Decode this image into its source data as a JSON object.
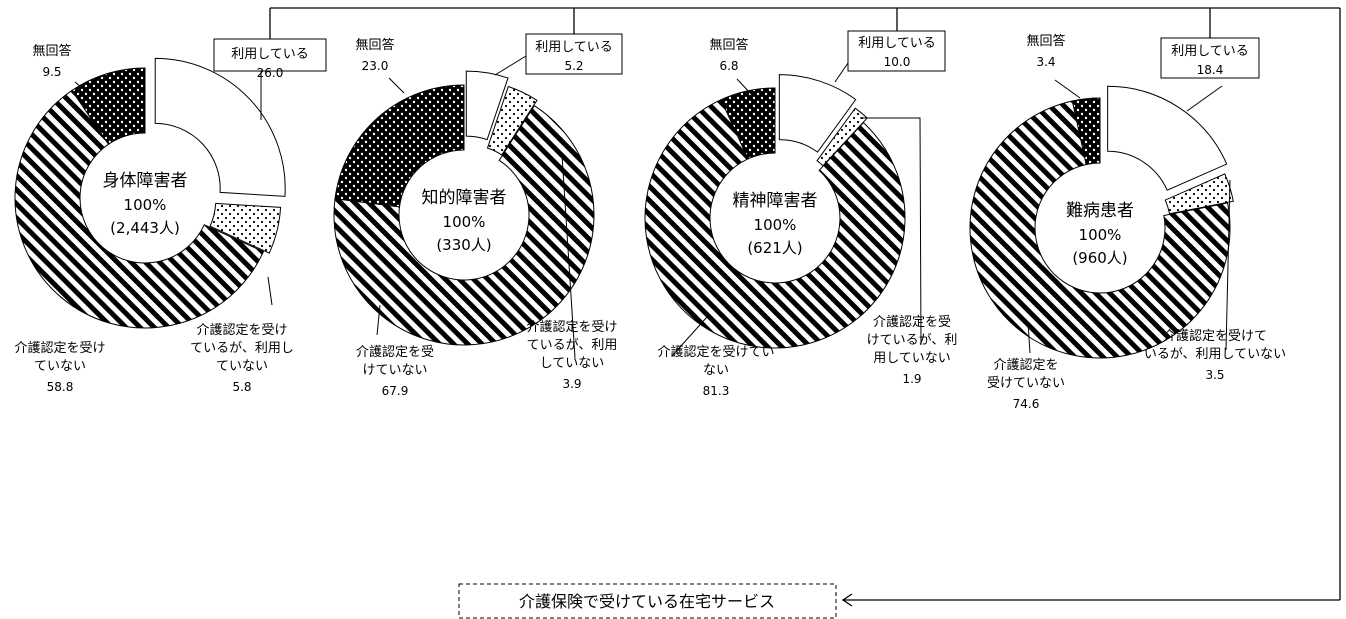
{
  "footer_label": "介護保険で受けている在宅サービス",
  "colors": {
    "using": "#ffffff",
    "certified_not_using": "dots-sparse",
    "not_certified": "diagonal-stripes",
    "no_answer": "dots-dense-black"
  },
  "chart_data": [
    {
      "type": "pie",
      "center_lines": [
        "身体障害者",
        "100%",
        "(2,443人)"
      ],
      "slices": [
        {
          "key": "using",
          "label_lines": [
            "利用している"
          ],
          "value": 26.0
        },
        {
          "key": "certified_not_using",
          "label_lines": [
            "介護認定を受け",
            "ているが、利用し",
            "ていない"
          ],
          "value": 5.8
        },
        {
          "key": "not_certified",
          "label_lines": [
            "介護認定を受け",
            "ていない"
          ],
          "value": 58.8
        },
        {
          "key": "no_answer",
          "label_lines": [
            "無回答"
          ],
          "value": 9.5
        }
      ]
    },
    {
      "type": "pie",
      "center_lines": [
        "知的障害者",
        "100%",
        "(330人)"
      ],
      "slices": [
        {
          "key": "using",
          "label_lines": [
            "利用している"
          ],
          "value": 5.2
        },
        {
          "key": "certified_not_using",
          "label_lines": [
            "介護認定を受け",
            "ているが、利用",
            "していない"
          ],
          "value": 3.9
        },
        {
          "key": "not_certified",
          "label_lines": [
            "介護認定を受",
            "けていない"
          ],
          "value": 67.9
        },
        {
          "key": "no_answer",
          "label_lines": [
            "無回答"
          ],
          "value": 23.0
        }
      ]
    },
    {
      "type": "pie",
      "center_lines": [
        "精神障害者",
        "100%",
        "(621人)"
      ],
      "slices": [
        {
          "key": "using",
          "label_lines": [
            "利用している"
          ],
          "value": 10.0
        },
        {
          "key": "certified_not_using",
          "label_lines": [
            "介護認定を受",
            "けているが、利",
            "用していない"
          ],
          "value": 1.9
        },
        {
          "key": "not_certified",
          "label_lines": [
            "介護認定を受けてい",
            "ない"
          ],
          "value": 81.3
        },
        {
          "key": "no_answer",
          "label_lines": [
            "無回答"
          ],
          "value": 6.8
        }
      ]
    },
    {
      "type": "pie",
      "center_lines": [
        "難病患者",
        "100%",
        "(960人)"
      ],
      "slices": [
        {
          "key": "using",
          "label_lines": [
            "利用している"
          ],
          "value": 18.4
        },
        {
          "key": "certified_not_using",
          "label_lines": [
            "介護認定を受けて",
            "いるが、利用していない"
          ],
          "value": 3.5
        },
        {
          "key": "not_certified",
          "label_lines": [
            "介護認定を",
            "受けていない"
          ],
          "value": 74.6
        },
        {
          "key": "no_answer",
          "label_lines": [
            "無回答"
          ],
          "value": 3.4
        }
      ]
    }
  ]
}
